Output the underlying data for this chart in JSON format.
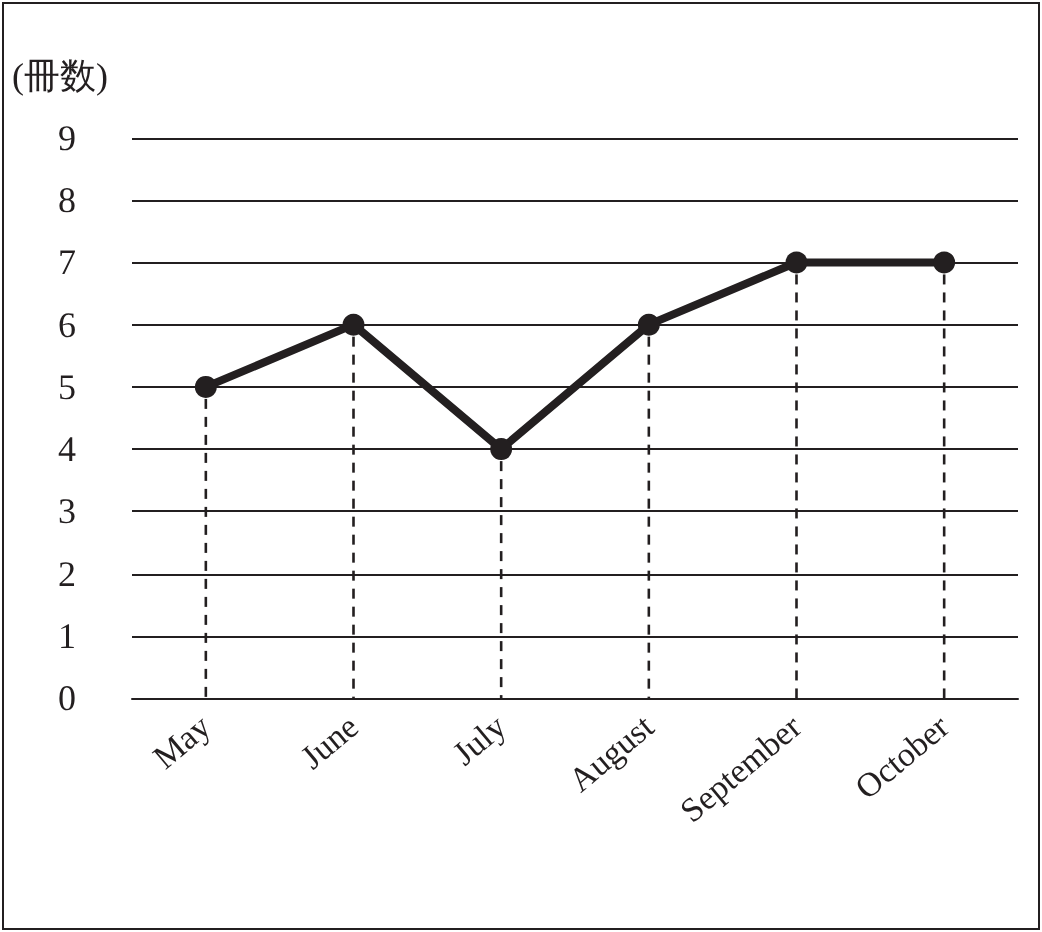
{
  "chart_data": {
    "type": "line",
    "ylabel": "(冊数)",
    "categories": [
      "May",
      "June",
      "July",
      "August",
      "September",
      "October"
    ],
    "series": [
      {
        "color": "#231f20",
        "values": [
          5,
          6,
          4,
          6,
          7,
          7
        ]
      }
    ],
    "ylim": [
      0,
      9
    ],
    "yticks": [
      0,
      1,
      2,
      3,
      4,
      5,
      6,
      7,
      8,
      9
    ],
    "grid": "y",
    "marker": "circle",
    "line_style": "solid"
  }
}
